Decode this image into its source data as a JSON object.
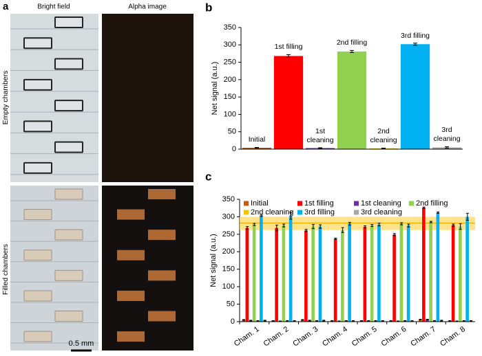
{
  "panel_labels": [
    "a",
    "b",
    "c"
  ],
  "panel_a": {
    "bright_field": "Bright field",
    "alpha_image": "Alpha image",
    "empty": "Empty chambers",
    "filled": "Filled chambers",
    "scale_bar": "0.5 mm"
  },
  "chart_data": [
    {
      "type": "bar",
      "y_label": "Net signal (a.u.)",
      "categories": [
        "Initial",
        "1st filling",
        "1st cleaning",
        "2nd filling",
        "2nd cleaning",
        "3rd filling",
        "3rd cleaning"
      ],
      "values": [
        4,
        268,
        3,
        281,
        2,
        302,
        5
      ],
      "errors": [
        1,
        4,
        1,
        3,
        1,
        3,
        2
      ],
      "colors": [
        "#c55a11",
        "#ff0000",
        "#7030a0",
        "#92d050",
        "#ffc000",
        "#00b0f0",
        "#a6a6a6"
      ],
      "ylim": [
        0,
        350
      ],
      "yticks": [
        0,
        50,
        100,
        150,
        200,
        250,
        300,
        350
      ]
    },
    {
      "type": "bar",
      "y_label": "Net signal (a.u.)",
      "categories": [
        "Cham. 1",
        "Cham. 2",
        "Cham. 3",
        "Cham. 4",
        "Cham. 5",
        "Cham. 6",
        "Cham. 7",
        "Cham. 8"
      ],
      "series": [
        {
          "name": "Initial",
          "color": "#c55a11",
          "values": [
            5,
            2,
            5,
            2,
            2,
            2,
            6,
            2
          ],
          "errors": [
            1,
            1,
            1,
            1,
            1,
            1,
            1,
            1
          ]
        },
        {
          "name": "1st filling",
          "color": "#ff0000",
          "values": [
            268,
            268,
            261,
            237,
            271,
            249,
            326,
            276
          ],
          "errors": [
            4,
            8,
            3,
            2,
            3,
            3,
            2,
            3
          ]
        },
        {
          "name": "1st cleaning",
          "color": "#7030a0",
          "values": [
            3,
            1,
            3,
            1,
            2,
            1,
            6,
            1
          ],
          "errors": [
            1,
            1,
            1,
            1,
            1,
            1,
            1,
            1
          ]
        },
        {
          "name": "2nd filling",
          "color": "#92d050",
          "values": [
            278,
            275,
            272,
            262,
            275,
            280,
            285,
            272
          ],
          "errors": [
            3,
            4,
            6,
            7,
            3,
            3,
            2,
            8
          ]
        },
        {
          "name": "2nd cleaning",
          "color": "#ffc000",
          "values": [
            2,
            2,
            2,
            2,
            2,
            2,
            2,
            2
          ],
          "errors": [
            1,
            1,
            1,
            1,
            1,
            1,
            1,
            1
          ]
        },
        {
          "name": "3rd filling",
          "color": "#00b0f0",
          "values": [
            303,
            303,
            272,
            280,
            278,
            275,
            312,
            300
          ],
          "errors": [
            2,
            10,
            5,
            4,
            4,
            4,
            2,
            10
          ]
        },
        {
          "name": "3rd cleaning",
          "color": "#a6a6a6",
          "values": [
            3,
            2,
            3,
            2,
            2,
            2,
            3,
            2
          ],
          "errors": [
            1,
            1,
            1,
            1,
            1,
            1,
            1,
            1
          ]
        }
      ],
      "band": {
        "low": 262,
        "high": 300,
        "mean": 282,
        "color": "#ffd966",
        "line_color": "#f0b400"
      },
      "ylim": [
        0,
        350
      ],
      "yticks": [
        0,
        50,
        100,
        150,
        200,
        250,
        300,
        350
      ]
    }
  ]
}
